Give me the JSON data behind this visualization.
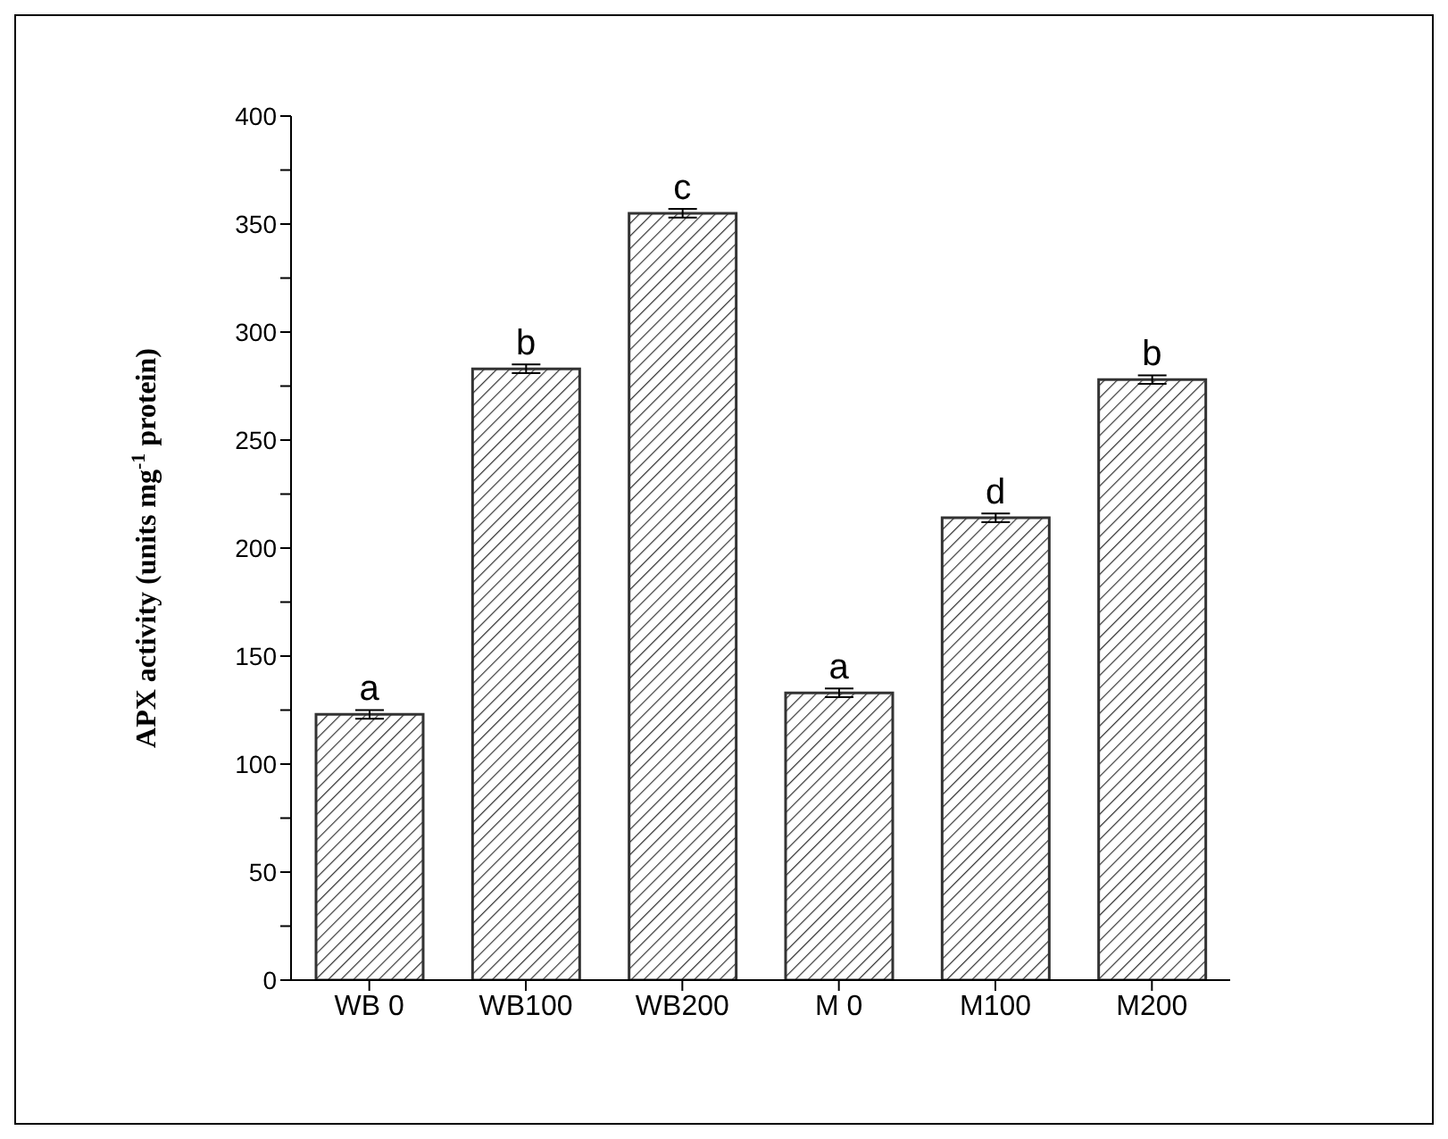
{
  "chart_data": {
    "type": "bar",
    "ylabel": "APX activity (units mg$^{-1}$ protein)",
    "categories": [
      "WB 0",
      "WB100",
      "WB200",
      "M 0",
      "M100",
      "M200"
    ],
    "values": [
      123,
      283,
      355,
      133,
      214,
      278
    ],
    "errors": [
      2,
      2,
      2,
      2,
      2,
      2
    ],
    "color": "#333333",
    "ylim": [
      0,
      400
    ],
    "yticks": [
      0,
      {
        "value": 25,
        "label": null
      },
      50,
      {
        "value": 75,
        "label": null
      },
      100,
      {
        "value": 125,
        "label": null
      },
      150,
      {
        "value": 175,
        "label": null
      },
      200,
      {
        "value": 225,
        "label": null
      },
      250,
      {
        "value": 275,
        "label": null
      },
      300,
      {
        "value": 325,
        "label": null
      },
      350,
      {
        "value": 375,
        "label": null
      },
      400
    ],
    "grid": false,
    "annotations": [
      {
        "text": "a",
        "x": "WB 0",
        "y": 123
      },
      {
        "text": "b",
        "x": "WB100",
        "y": 283
      },
      {
        "text": "c",
        "x": "WB200",
        "y": 355
      },
      {
        "text": "a",
        "x": "M 0",
        "y": 133
      },
      {
        "text": "d",
        "x": "M100",
        "y": 214
      },
      {
        "text": "b",
        "x": "M200",
        "y": 278
      }
    ]
  }
}
